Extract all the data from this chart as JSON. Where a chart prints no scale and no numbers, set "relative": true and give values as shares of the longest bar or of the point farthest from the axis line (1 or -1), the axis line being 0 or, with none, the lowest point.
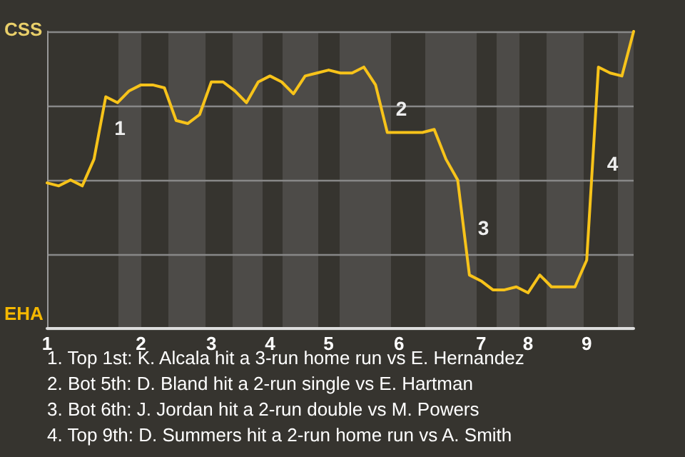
{
  "chart_data": {
    "type": "line",
    "relative": true,
    "categories": [
      "1",
      null,
      null,
      null,
      null,
      null,
      null,
      null,
      "2",
      null,
      null,
      null,
      null,
      null,
      "3",
      null,
      null,
      null,
      null,
      "4",
      null,
      null,
      null,
      null,
      "5",
      null,
      null,
      null,
      null,
      null,
      "6",
      null,
      null,
      null,
      null,
      null,
      null,
      "7",
      null,
      null,
      null,
      "8",
      null,
      null,
      null,
      null,
      "9",
      null,
      null,
      null,
      null
    ],
    "series": [
      {
        "color": "#f7c31a",
        "values": [
          0.49,
          0.48,
          0.5,
          0.48,
          0.57,
          0.78,
          0.76,
          0.8,
          0.82,
          0.82,
          0.81,
          0.7,
          0.69,
          0.72,
          0.83,
          0.83,
          0.8,
          0.76,
          0.83,
          0.85,
          0.83,
          0.79,
          0.85,
          0.86,
          0.87,
          0.86,
          0.86,
          0.88,
          0.82,
          0.66,
          0.66,
          0.66,
          0.66,
          0.67,
          0.57,
          0.5,
          0.18,
          0.16,
          0.13,
          0.13,
          0.14,
          0.12,
          0.18,
          0.14,
          0.14,
          0.14,
          0.23,
          0.88,
          0.86,
          0.85,
          1
        ]
      }
    ],
    "grid": "y",
    "marker": "none",
    "line_style": "solid",
    "annotations": [
      "CSS",
      "EHA",
      "1",
      "2",
      "3",
      "4",
      "1. Top 1st: K. Alcala hit a 3-run home run vs E. Hernandez",
      "2. Bot 5th: D. Bland hit a 2-run single vs E. Hartman",
      "3. Bot 6th: J. Jordan hit a 2-run double vs M. Powers",
      "4. Top 9th: D. Summers hit a 2-run home run vs A. Smith"
    ]
  }
}
